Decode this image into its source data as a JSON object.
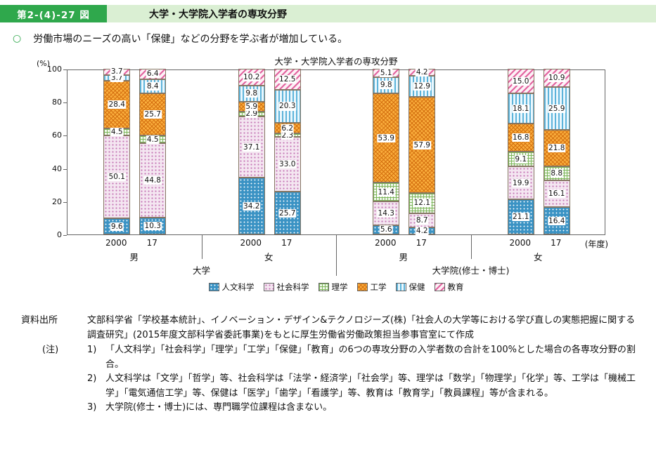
{
  "header": {
    "figure_label": "第2-(4)-27 図",
    "title": "大学・大学院入学者の専攻分野"
  },
  "lead": {
    "marker": "○",
    "text": "労働市場のニーズの高い「保健」などの分野を学ぶ者が増加している。"
  },
  "chart_data": {
    "type": "bar",
    "stacked": true,
    "title": "大学・大学院入学者の専攻分野",
    "unit_label": "(%)",
    "ylim": [
      0,
      100
    ],
    "yticks": [
      0,
      20,
      40,
      60,
      80,
      100
    ],
    "axis_suffix": "(年度)",
    "series_labels": [
      "人文科学",
      "社会科学",
      "理学",
      "工学",
      "保健",
      "教育"
    ],
    "groups": [
      {
        "school": "大学",
        "gender": "男",
        "bars": [
          {
            "year": "2000",
            "values": [
              9.6,
              50.1,
              4.5,
              28.4,
              3.7,
              3.7
            ]
          },
          {
            "year": "17",
            "values": [
              10.3,
              44.8,
              4.5,
              25.7,
              8.4,
              6.4
            ]
          }
        ]
      },
      {
        "school": "大学",
        "gender": "女",
        "bars": [
          {
            "year": "2000",
            "values": [
              34.2,
              37.1,
              2.9,
              5.9,
              9.8,
              10.2
            ]
          },
          {
            "year": "17",
            "values": [
              25.7,
              33.0,
              2.3,
              6.2,
              20.3,
              12.5
            ]
          }
        ]
      },
      {
        "school": "大学院(修士・博士)",
        "gender": "男",
        "bars": [
          {
            "year": "2000",
            "values": [
              5.6,
              14.3,
              11.4,
              53.9,
              9.8,
              5.1
            ]
          },
          {
            "year": "17",
            "values": [
              4.2,
              8.7,
              12.1,
              57.9,
              12.9,
              4.2
            ]
          }
        ]
      },
      {
        "school": "大学院(修士・博士)",
        "gender": "女",
        "bars": [
          {
            "year": "2000",
            "values": [
              21.1,
              19.9,
              9.1,
              16.8,
              18.1,
              15.0
            ]
          },
          {
            "year": "17",
            "values": [
              16.4,
              16.1,
              8.8,
              21.8,
              25.9,
              10.9
            ]
          }
        ]
      }
    ],
    "school_spans": [
      {
        "label": "大学",
        "groups": [
          0,
          1
        ]
      },
      {
        "label": "大学院(修士・博士)",
        "groups": [
          2,
          3
        ]
      }
    ],
    "legend_position": "bottom"
  },
  "footer": {
    "source_label": "資料出所",
    "source_text": "文部科学省「学校基本統計」、イノベーション・デザイン&テクノロジーズ(株)「社会人の大学等における学び直しの実態把握に関する調査研究」(2015年度文部科学省委託事業)をもとに厚生労働省労働政策担当参事官室にて作成",
    "note_label": "(注)",
    "notes": [
      {
        "num": "1)",
        "text": "「人文科学」「社会科学」「理学」「工学」「保健」「教育」の6つの専攻分野の入学者数の合計を100%とした場合の各専攻分野の割合。"
      },
      {
        "num": "2)",
        "text": "人文科学は「文学」「哲学」等、社会科学は「法学・経済学」「社会学」等、理学は「数学」「物理学」「化学」等、工学は「機械工学」「電気通信工学」等、保健は「医学」「歯学」「看護学」等、教育は「教育学」「教員課程」等が含まれる。"
      },
      {
        "num": "3)",
        "text": "大学院(修士・博士)には、専門職学位課程は含まない。"
      }
    ]
  },
  "colors": {
    "header_green": "#2fa84c",
    "header_strip": "#daefd3",
    "series": {
      "人文科学": "#3b93c4",
      "社会科学": "#c372b4",
      "理学": "#7cb65a",
      "工学": "#f9ad3c",
      "保健": "#5db3da",
      "教育": "#e2639f"
    }
  }
}
